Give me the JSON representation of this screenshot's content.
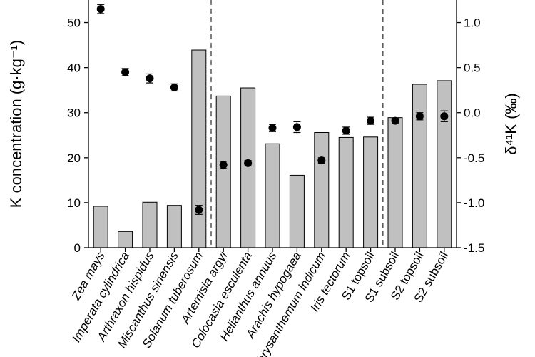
{
  "chart_data": {
    "type": "bar",
    "categories": [
      {
        "label": "Zea mays",
        "italic": true
      },
      {
        "label": "Imperata cylindrica",
        "italic": true
      },
      {
        "label": "Arthraxon hispidus",
        "italic": true
      },
      {
        "label": "Miscanthus sinensis",
        "italic": true
      },
      {
        "label": "Solanum tuberosum",
        "italic": true
      },
      {
        "label": "Artemisia argyi",
        "italic": true
      },
      {
        "label": "Colocasia esculenta",
        "italic": true
      },
      {
        "label": "Helianthus annuus",
        "italic": true
      },
      {
        "label": "Arachis hypogaea",
        "italic": true
      },
      {
        "label": "Chrysanthemum indicum",
        "italic": true
      },
      {
        "label": "Iris tectorum",
        "italic": true
      },
      {
        "label": "S1 topsoil",
        "italic": false
      },
      {
        "label": "S1 subsoil",
        "italic": false
      },
      {
        "label": "S2 topsoil",
        "italic": false
      },
      {
        "label": "S2 subsoil",
        "italic": false
      }
    ],
    "series": [
      {
        "kind": "bar",
        "axis": "left",
        "color": "#c0c0c0",
        "values": [
          9.2,
          3.6,
          10.1,
          9.4,
          43.9,
          33.7,
          35.5,
          23.1,
          16.1,
          25.6,
          24.5,
          24.6,
          28.9,
          36.3,
          37.1
        ]
      },
      {
        "kind": "points",
        "axis": "right",
        "color": "#000000",
        "values": [
          1.15,
          0.45,
          0.38,
          0.28,
          -1.08,
          -0.58,
          -0.56,
          -0.17,
          -0.16,
          -0.53,
          -0.2,
          -0.09,
          -0.09,
          -0.04,
          -0.04
        ],
        "errors": [
          0.05,
          0.04,
          0.05,
          0.04,
          0.05,
          0.04,
          0.03,
          0.04,
          0.06,
          0.03,
          0.04,
          0.04,
          0.03,
          0.04,
          0.06
        ]
      }
    ],
    "ylabel_left": "K concentration (g·kg⁻¹)",
    "ylabel_right": "δ⁴¹K (‰)",
    "ylim_left": [
      0,
      55
    ],
    "ylim_right": [
      -1.5,
      1.25
    ],
    "yticks_left": [
      "0",
      "10",
      "20",
      "30",
      "40",
      "50"
    ],
    "yticks_right": [
      "-1.5",
      "-1.0",
      "-0.5",
      "0.0",
      "0.5",
      "1.0"
    ],
    "group_dividers_after": [
      4,
      11
    ],
    "grid": false
  }
}
